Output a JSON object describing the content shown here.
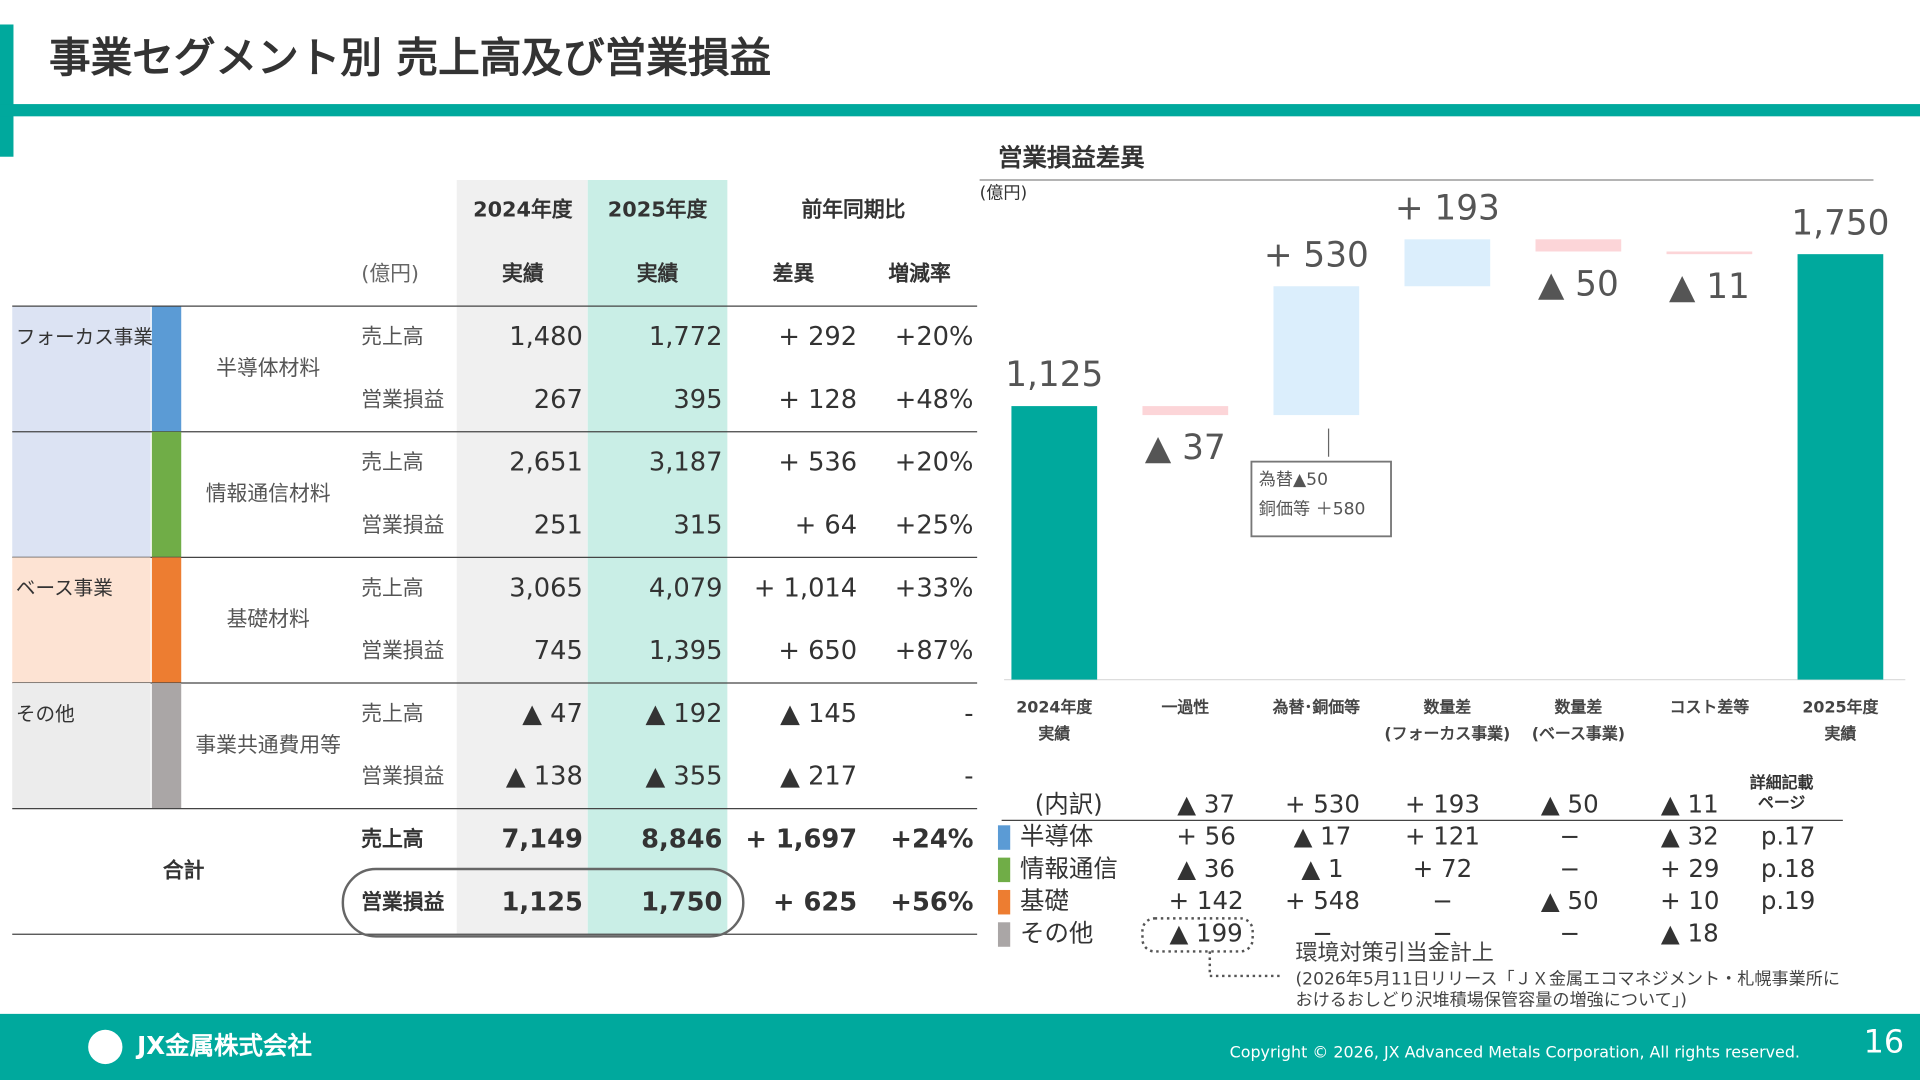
{
  "header": {
    "title": "事業セグメント別 売上高及び営業損益"
  },
  "table": {
    "years": [
      "2024年度",
      "2025年度",
      "前年同期比"
    ],
    "unit": "(億円)",
    "columns": [
      "実績",
      "実績",
      "差異",
      "増減率"
    ],
    "groups": [
      {
        "name": "フォーカス事業",
        "color": "#dce3f3",
        "segments": [
          {
            "name": "半導体材料",
            "color": "#5b9bd5",
            "rows": [
              {
                "item": "売上高",
                "cells": [
                  "1,480",
                  "1,772",
                  "+ 292",
                  "+20%"
                ]
              },
              {
                "item": "営業損益",
                "cells": [
                  "267",
                  "395",
                  "+ 128",
                  "+48%"
                ]
              }
            ]
          },
          {
            "name": "情報通信材料",
            "color": "#70ad47",
            "rows": [
              {
                "item": "売上高",
                "cells": [
                  "2,651",
                  "3,187",
                  "+ 536",
                  "+20%"
                ]
              },
              {
                "item": "営業損益",
                "cells": [
                  "251",
                  "315",
                  "+ 64",
                  "+25%"
                ]
              }
            ]
          }
        ]
      },
      {
        "name": "ベース事業",
        "color": "#fde3d3",
        "segments": [
          {
            "name": "基礎材料",
            "color": "#ed7d31",
            "rows": [
              {
                "item": "売上高",
                "cells": [
                  "3,065",
                  "4,079",
                  "+ 1,014",
                  "+33%"
                ]
              },
              {
                "item": "営業損益",
                "cells": [
                  "745",
                  "1,395",
                  "+ 650",
                  "+87%"
                ]
              }
            ]
          }
        ]
      },
      {
        "name": "その他",
        "color": "#ececec",
        "segments": [
          {
            "name": "事業共通費用等",
            "color": "#aaa6a6",
            "rows": [
              {
                "item": "売上高",
                "cells": [
                  "▲ 47",
                  "▲ 192",
                  "▲ 145",
                  "-"
                ]
              },
              {
                "item": "営業損益",
                "cells": [
                  "▲ 138",
                  "▲ 355",
                  "▲ 217",
                  "-"
                ]
              }
            ]
          }
        ]
      }
    ],
    "total": {
      "name": "合計",
      "rows": [
        {
          "item": "売上高",
          "cells": [
            "7,149",
            "8,846",
            "+ 1,697",
            "+24%"
          ]
        },
        {
          "item": "営業損益",
          "cells": [
            "1,125",
            "1,750",
            "+ 625",
            "+56%"
          ]
        }
      ]
    }
  },
  "chart_data": {
    "type": "waterfall",
    "title": "営業損益差異",
    "unit": "(億円)",
    "categories": [
      [
        "2024年度",
        "実績"
      ],
      [
        "一過性"
      ],
      [
        "為替･銅価等"
      ],
      [
        "数量差",
        "(フォーカス事業)"
      ],
      [
        "数量差",
        "(ベース事業)"
      ],
      [
        "コスト差等"
      ],
      [
        "2025年度",
        "実績"
      ]
    ],
    "values": [
      1125,
      -37,
      530,
      193,
      -50,
      -11,
      1750
    ],
    "value_labels": [
      "1,125",
      "▲ 37",
      "+ 530",
      "+ 193",
      "▲ 50",
      "▲ 11",
      "1,750"
    ],
    "ylim": [
      0,
      2050
    ],
    "colors": {
      "total": "#00a99d",
      "increase": "#dbeefc",
      "decrease": "#fcd5d8"
    },
    "annotation": [
      "為替▲50",
      "銅価等 ＋580"
    ]
  },
  "breakdown": {
    "header": [
      "(内訳)",
      "▲ 37",
      "+ 530",
      "+ 193",
      "▲ 50",
      "▲ 11",
      "詳細記載",
      "ページ"
    ],
    "rows": [
      {
        "name": "半導体",
        "color": "#5b9bd5",
        "cells": [
          "+ 56",
          "▲ 17",
          "+ 121",
          "−",
          "▲ 32",
          "p.17"
        ]
      },
      {
        "name": "情報通信",
        "color": "#70ad47",
        "cells": [
          "▲ 36",
          "▲ 1",
          "+ 72",
          "−",
          "+ 29",
          "p.18"
        ]
      },
      {
        "name": "基礎",
        "color": "#ed7d31",
        "cells": [
          "+ 142",
          "+ 548",
          "−",
          "▲ 50",
          "+ 10",
          "p.19"
        ]
      },
      {
        "name": "その他",
        "color": "#aaa6a6",
        "cells": [
          "▲ 199",
          "−",
          "−",
          "−",
          "▲ 18",
          ""
        ]
      }
    ],
    "note": [
      "環境対策引当金計上",
      "(2026年5月11日リリース「ＪＸ金属エコマネジメント・札幌事業所に",
      "おけるおしどり沢堆積場保管容量の増強について」)"
    ]
  },
  "footer": {
    "company": "JX金属株式会社",
    "copyright": "Copyright © 2026, JX Advanced Metals Corporation, All rights reserved.",
    "page": "16"
  }
}
